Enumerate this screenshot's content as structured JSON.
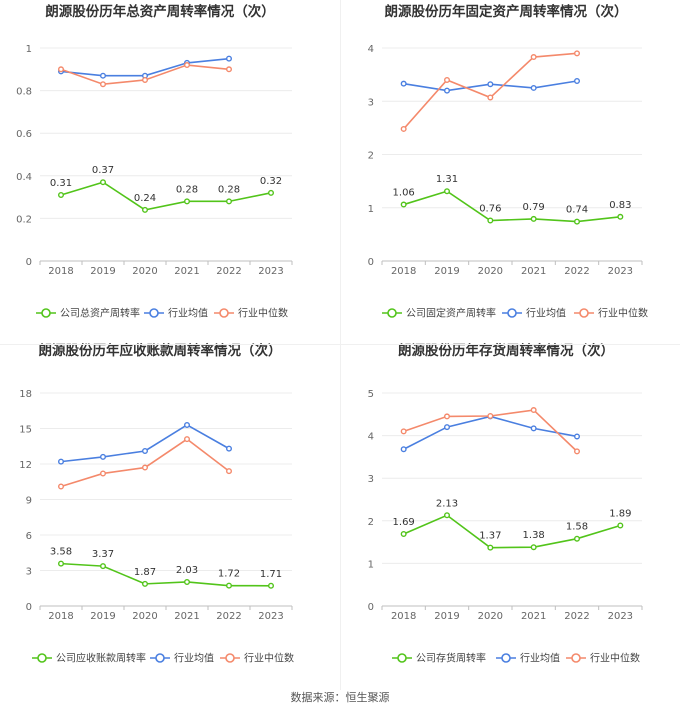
{
  "source_label": "数据来源：恒生聚源",
  "chart_data": [
    {
      "type": "line",
      "title": "朗源股份历年总资产周转率情况（次）",
      "x": [
        "2018",
        "2019",
        "2020",
        "2021",
        "2022",
        "2023"
      ],
      "ylim": [
        0,
        1
      ],
      "yticks": [
        0,
        0.2,
        0.4,
        0.6,
        0.8,
        1
      ],
      "ytick_labels": [
        "0",
        "0.2",
        "0.4",
        "0.6",
        "0.8",
        "1"
      ],
      "series": [
        {
          "name": "公司总资产周转率",
          "color": "#52c41a",
          "values": [
            0.31,
            0.37,
            0.24,
            0.28,
            0.28,
            0.32
          ],
          "labels": [
            "0.31",
            "0.37",
            "0.24",
            "0.28",
            "0.28",
            "0.32"
          ]
        },
        {
          "name": "行业均值",
          "color": "#4a7fe0",
          "values": [
            0.89,
            0.87,
            0.87,
            0.93,
            0.95,
            null
          ]
        },
        {
          "name": "行业中位数",
          "color": "#f4896b",
          "values": [
            0.9,
            0.83,
            0.85,
            0.92,
            0.9,
            null
          ]
        }
      ]
    },
    {
      "type": "line",
      "title": "朗源股份历年固定资产周转率情况（次）",
      "x": [
        "2018",
        "2019",
        "2020",
        "2021",
        "2022",
        "2023"
      ],
      "ylim": [
        0,
        4
      ],
      "yticks": [
        0,
        1,
        2,
        3,
        4
      ],
      "ytick_labels": [
        "0",
        "1",
        "2",
        "3",
        "4"
      ],
      "series": [
        {
          "name": "公司固定资产周转率",
          "color": "#52c41a",
          "values": [
            1.06,
            1.31,
            0.76,
            0.79,
            0.74,
            0.83
          ],
          "labels": [
            "1.06",
            "1.31",
            "0.76",
            "0.79",
            "0.74",
            "0.83"
          ]
        },
        {
          "name": "行业均值",
          "color": "#4a7fe0",
          "values": [
            3.33,
            3.2,
            3.32,
            3.25,
            3.38,
            null
          ]
        },
        {
          "name": "行业中位数",
          "color": "#f4896b",
          "values": [
            2.48,
            3.4,
            3.07,
            3.83,
            3.9,
            null
          ]
        }
      ]
    },
    {
      "type": "line",
      "title": "朗源股份历年应收账款周转率情况（次）",
      "x": [
        "2018",
        "2019",
        "2020",
        "2021",
        "2022",
        "2023"
      ],
      "ylim": [
        0,
        18
      ],
      "yticks": [
        0,
        3,
        6,
        9,
        12,
        15,
        18
      ],
      "ytick_labels": [
        "0",
        "3",
        "6",
        "9",
        "12",
        "15",
        "18"
      ],
      "series": [
        {
          "name": "公司应收账款周转率",
          "color": "#52c41a",
          "values": [
            3.58,
            3.37,
            1.87,
            2.03,
            1.72,
            1.71
          ],
          "labels": [
            "3.58",
            "3.37",
            "1.87",
            "2.03",
            "1.72",
            "1.71"
          ]
        },
        {
          "name": "行业均值",
          "color": "#4a7fe0",
          "values": [
            12.2,
            12.6,
            13.1,
            15.3,
            13.3,
            null
          ]
        },
        {
          "name": "行业中位数",
          "color": "#f4896b",
          "values": [
            10.1,
            11.2,
            11.7,
            14.1,
            11.4,
            null
          ]
        }
      ]
    },
    {
      "type": "line",
      "title": "朗源股份历年存货周转率情况（次）",
      "x": [
        "2018",
        "2019",
        "2020",
        "2021",
        "2022",
        "2023"
      ],
      "ylim": [
        0,
        5
      ],
      "yticks": [
        0,
        1,
        2,
        3,
        4,
        5
      ],
      "ytick_labels": [
        "0",
        "1",
        "2",
        "3",
        "4",
        "5"
      ],
      "series": [
        {
          "name": "公司存货周转率",
          "color": "#52c41a",
          "values": [
            1.69,
            2.13,
            1.37,
            1.38,
            1.58,
            1.89
          ],
          "labels": [
            "1.69",
            "2.13",
            "1.37",
            "1.38",
            "1.58",
            "1.89"
          ]
        },
        {
          "name": "行业均值",
          "color": "#4a7fe0",
          "values": [
            3.68,
            4.2,
            4.45,
            4.17,
            3.98,
            null
          ]
        },
        {
          "name": "行业中位数",
          "color": "#f4896b",
          "values": [
            4.1,
            4.45,
            4.46,
            4.6,
            3.63,
            null
          ]
        }
      ]
    }
  ]
}
